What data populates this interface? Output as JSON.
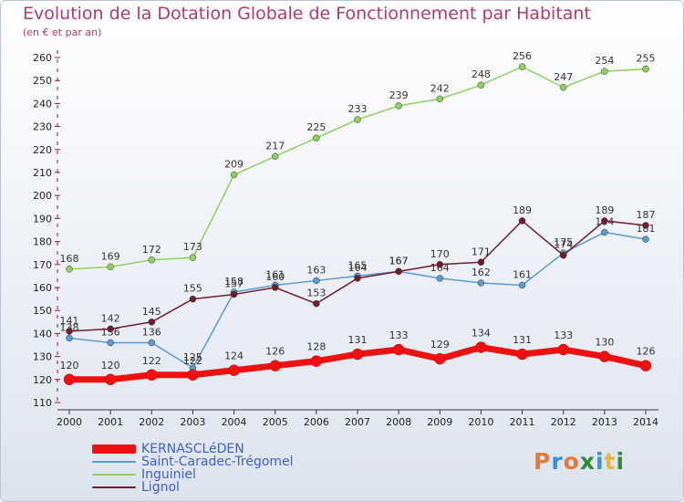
{
  "title": "Evolution de la Dotation Globale de Fonctionnement par Habitant",
  "subtitle": "(en € et par an)",
  "logo": {
    "text": "Proxiti",
    "colors": [
      "#e8773a",
      "#3a8fd6",
      "#e8773a",
      "#2f8a3a",
      "#3a8fd6",
      "#e8b73a",
      "#2f8a3a"
    ]
  },
  "chart_data": {
    "type": "line",
    "x": [
      "2000",
      "2001",
      "2002",
      "2003",
      "2004",
      "2005",
      "2006",
      "2007",
      "2008",
      "2009",
      "2010",
      "2011",
      "2012",
      "2013",
      "2014"
    ],
    "ylim": [
      110,
      260
    ],
    "yticks": [
      110,
      120,
      130,
      140,
      150,
      160,
      170,
      180,
      190,
      200,
      210,
      220,
      230,
      240,
      250,
      260
    ],
    "grid": false,
    "legend_position": "bottom-left",
    "series": [
      {
        "name": "KERNASCLéDEN",
        "color": "#ee1111",
        "width": 7,
        "values": [
          120,
          120,
          122,
          122,
          124,
          126,
          128,
          131,
          133,
          129,
          134,
          131,
          133,
          130,
          126
        ]
      },
      {
        "name": "Saint-Caradec-Trégomel",
        "color": "#5a9bd0",
        "width": 1.5,
        "values": [
          138,
          136,
          136,
          125,
          158,
          161,
          163,
          165,
          167,
          164,
          162,
          161,
          175,
          184,
          181
        ]
      },
      {
        "name": "Inguiniel",
        "color": "#90d060",
        "width": 1.5,
        "values": [
          168,
          169,
          172,
          173,
          209,
          217,
          225,
          233,
          239,
          242,
          248,
          256,
          247,
          254,
          255
        ]
      },
      {
        "name": "Lignol",
        "color": "#6e1e2e",
        "width": 1.5,
        "values": [
          141,
          142,
          145,
          155,
          157,
          160,
          153,
          164,
          167,
          170,
          171,
          189,
          174,
          189,
          187
        ]
      }
    ]
  }
}
